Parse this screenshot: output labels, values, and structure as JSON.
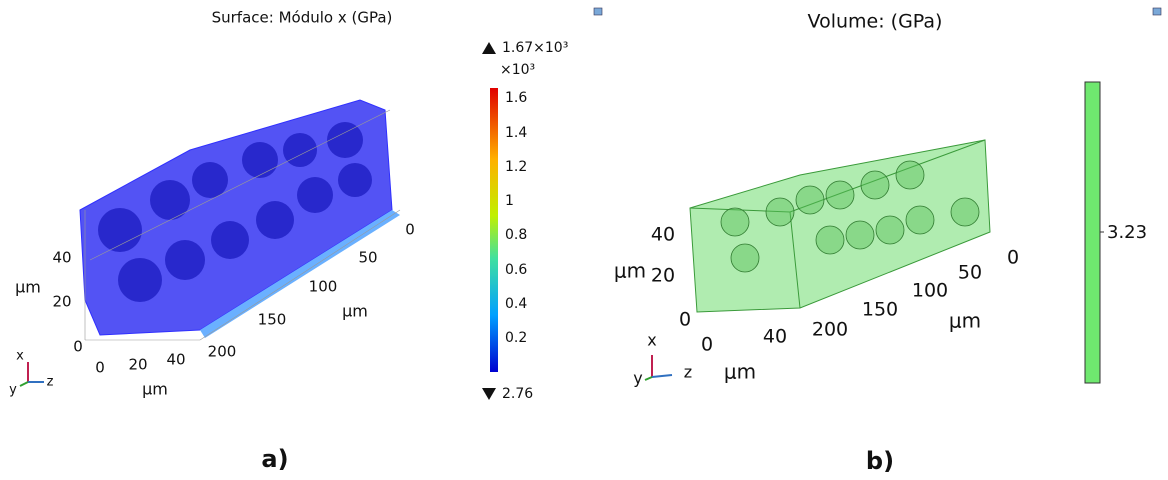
{
  "panel_a": {
    "title": "Surface: Módulo x (GPa)",
    "colorbar": {
      "max_label": "1.67×10³",
      "multiplier": "×10³",
      "ticks": [
        "1.6",
        "1.4",
        "1.2",
        "1",
        "0.8",
        "0.6",
        "0.4",
        "0.2"
      ],
      "min_label": "2.76"
    },
    "x_axis": {
      "ticks": [
        "40",
        "20",
        "0"
      ],
      "unit": "μm"
    },
    "y_axis": {
      "ticks": [
        "0",
        "20",
        "40"
      ],
      "unit": "μm"
    },
    "z_axis": {
      "ticks": [
        "0",
        "50",
        "100",
        "150",
        "200"
      ],
      "unit": "μm"
    },
    "triad": [
      "x",
      "y",
      "z"
    ],
    "caption": "a)"
  },
  "panel_b": {
    "title": "Volume:  (GPa)",
    "colorbar": {
      "label": "3.23"
    },
    "x_axis": {
      "ticks": [
        "40",
        "20",
        "0"
      ],
      "unit": "μm"
    },
    "y_axis": {
      "ticks": [
        "0",
        "40"
      ],
      "unit": "μm"
    },
    "z_axis": {
      "ticks": [
        "0",
        "50",
        "100",
        "150",
        "200"
      ],
      "unit": "μm"
    },
    "triad": [
      "x",
      "y",
      "z"
    ],
    "caption": "b)"
  }
}
